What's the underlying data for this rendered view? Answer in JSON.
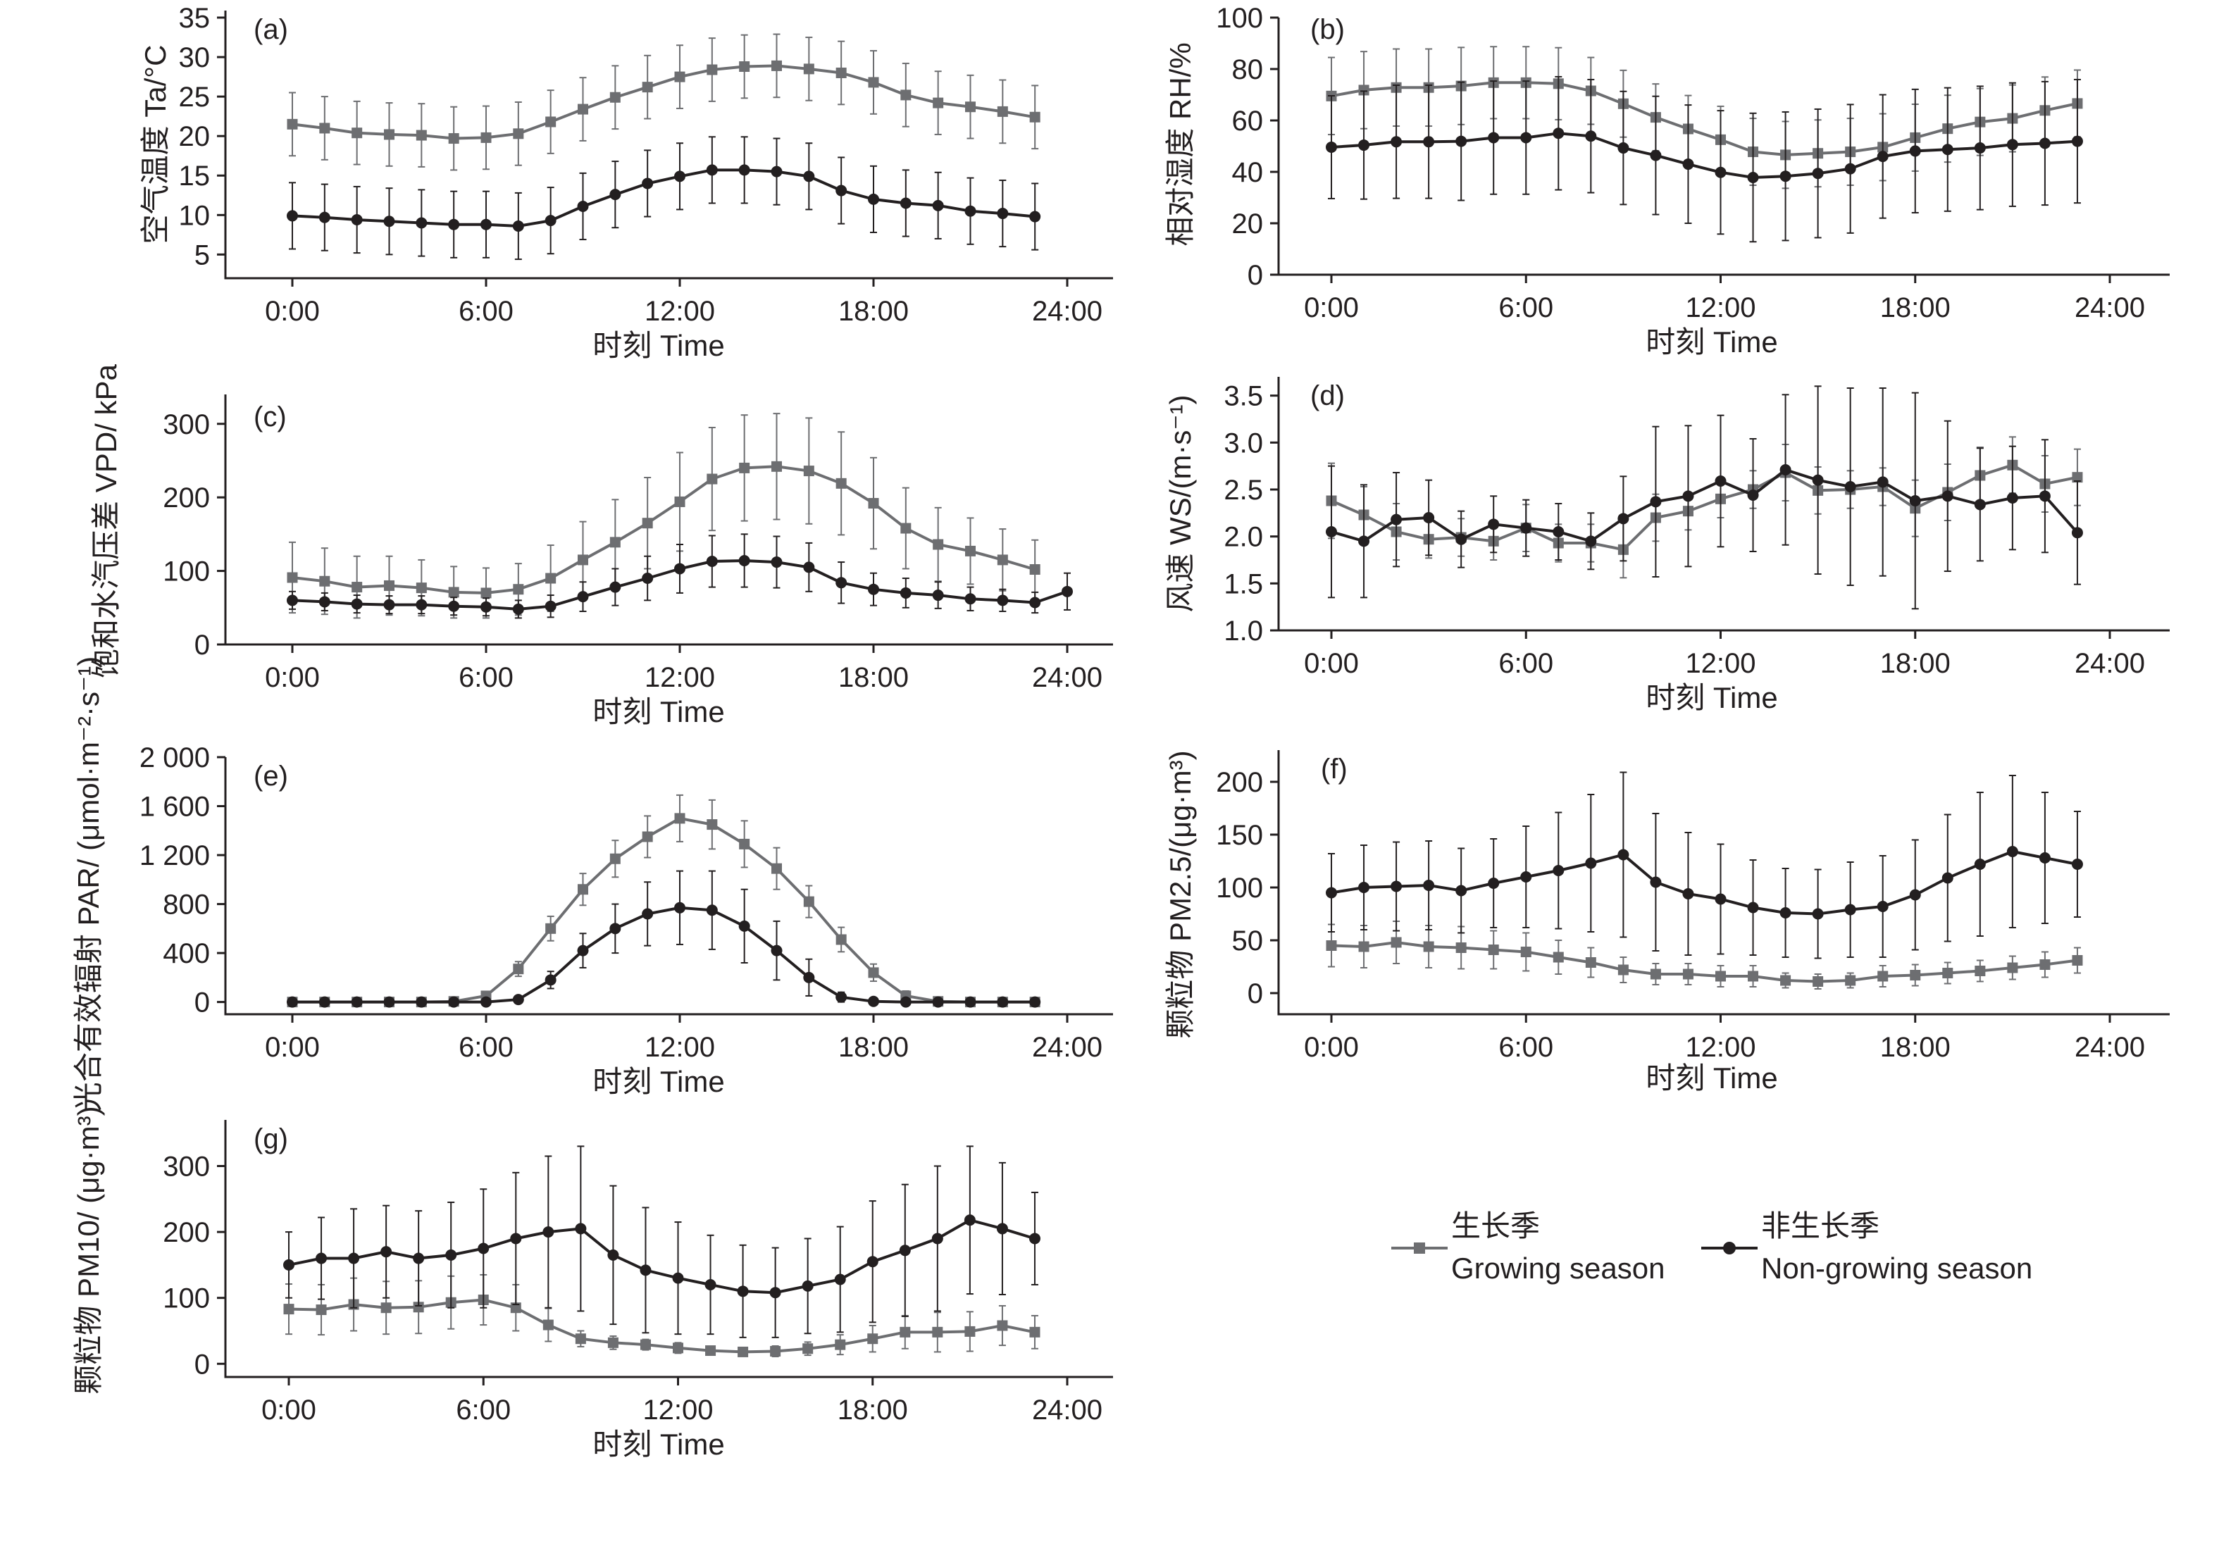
{
  "legend": {
    "growing_cn": "生长季",
    "growing_en": "Growing season",
    "nongrowing_cn": "非生长季",
    "nongrowing_en": "Non-growing season"
  },
  "colors": {
    "growing": "#6d6e71",
    "nongrowing": "#231f20"
  },
  "chart_data": [
    {
      "id": "a",
      "type": "line",
      "panel_label": "(a)",
      "xlabel": "时刻 Time",
      "ylabel": "空气温度 Ta/°C",
      "x_ticks": [
        "0:00",
        "6:00",
        "12:00",
        "18:00",
        "24:00"
      ],
      "y_ticks": [
        "5",
        "10",
        "15",
        "20",
        "25",
        "30",
        "35"
      ],
      "xlim": [
        0,
        24
      ],
      "ylim": [
        2,
        35
      ],
      "x": [
        0,
        1,
        2,
        3,
        4,
        5,
        6,
        7,
        8,
        9,
        10,
        11,
        12,
        13,
        14,
        15,
        16,
        17,
        18,
        19,
        20,
        21,
        22,
        23
      ],
      "series": [
        {
          "name": "Growing season",
          "marker": "square",
          "values": [
            21.5,
            21.0,
            20.4,
            20.2,
            20.1,
            19.7,
            19.8,
            20.3,
            21.8,
            23.4,
            24.9,
            26.2,
            27.5,
            28.4,
            28.8,
            28.9,
            28.5,
            28.0,
            26.8,
            25.2,
            24.2,
            23.7,
            23.1,
            22.4
          ],
          "error": [
            4,
            4,
            4,
            4,
            4,
            4,
            4,
            4,
            4,
            4,
            4,
            4,
            4,
            4,
            4,
            4,
            4,
            4,
            4,
            4,
            4,
            4,
            4,
            4
          ]
        },
        {
          "name": "Non-growing season",
          "marker": "circle",
          "values": [
            9.9,
            9.7,
            9.4,
            9.2,
            9.0,
            8.8,
            8.8,
            8.6,
            9.3,
            11.1,
            12.6,
            14.0,
            14.9,
            15.7,
            15.7,
            15.5,
            14.9,
            13.1,
            12.0,
            11.5,
            11.2,
            10.5,
            10.2,
            9.8
          ],
          "error": [
            4.2,
            4.2,
            4.2,
            4.2,
            4.2,
            4.2,
            4.2,
            4.2,
            4.2,
            4.2,
            4.2,
            4.2,
            4.2,
            4.2,
            4.2,
            4.2,
            4.2,
            4.2,
            4.2,
            4.2,
            4.2,
            4.2,
            4.2,
            4.2
          ]
        }
      ]
    },
    {
      "id": "b",
      "type": "line",
      "panel_label": "(b)",
      "xlabel": "时刻 Time",
      "ylabel": "相对湿度 RH/%",
      "x_ticks": [
        "0:00",
        "6:00",
        "12:00",
        "18:00",
        "24:00"
      ],
      "y_ticks": [
        "0",
        "20",
        "40",
        "60",
        "80",
        "100"
      ],
      "xlim": [
        0,
        24
      ],
      "ylim": [
        0,
        100
      ],
      "x": [
        0,
        1,
        2,
        3,
        4,
        5,
        6,
        7,
        8,
        9,
        10,
        11,
        12,
        13,
        14,
        15,
        16,
        17,
        18,
        19,
        20,
        21,
        22,
        23
      ],
      "series": [
        {
          "name": "Growing season",
          "marker": "square",
          "values": [
            69.5,
            71.8,
            72.8,
            72.8,
            73.4,
            74.7,
            74.7,
            74.3,
            71.5,
            66.5,
            61.2,
            56.7,
            52.5,
            47.8,
            46.6,
            47.2,
            47.8,
            49.6,
            53.3,
            56.8,
            59.4,
            60.8,
            63.9,
            66.6
          ],
          "error": [
            15,
            15,
            15,
            15,
            15,
            14,
            14,
            14,
            13,
            13,
            13,
            13,
            13,
            13,
            13,
            13,
            13,
            13,
            13,
            13,
            13,
            13,
            13,
            13
          ]
        },
        {
          "name": "Non-growing season",
          "marker": "circle",
          "values": [
            49.6,
            50.4,
            51.7,
            51.7,
            51.9,
            53.3,
            53.3,
            55.0,
            53.9,
            49.3,
            46.4,
            43.0,
            39.8,
            37.8,
            38.3,
            39.4,
            41.2,
            46.0,
            48.1,
            48.7,
            49.3,
            50.6,
            51.1,
            51.9
          ],
          "error": [
            20,
            21,
            22,
            22,
            23,
            22,
            22,
            22,
            22,
            22,
            23,
            23,
            24,
            25,
            25,
            25,
            25,
            24,
            24,
            24,
            24,
            24,
            24,
            24
          ]
        }
      ]
    },
    {
      "id": "c",
      "type": "line",
      "panel_label": "(c)",
      "xlabel": "时刻 Time",
      "ylabel": "饱和水汽压差 VPD/ kPa",
      "x_ticks": [
        "0:00",
        "6:00",
        "12:00",
        "18:00",
        "24:00"
      ],
      "y_ticks": [
        "0",
        "100",
        "200",
        "300"
      ],
      "xlim": [
        0,
        24
      ],
      "ylim": [
        0,
        340
      ],
      "x": [
        0,
        1,
        2,
        3,
        4,
        5,
        6,
        7,
        8,
        9,
        10,
        11,
        12,
        13,
        14,
        15,
        16,
        17,
        18,
        19,
        20,
        21,
        22,
        23
      ],
      "series": [
        {
          "name": "Growing season",
          "marker": "square",
          "values": [
            91,
            86,
            78,
            80,
            77,
            71,
            70,
            75,
            90,
            115,
            139,
            165,
            194,
            225,
            240,
            242,
            236,
            219,
            192,
            158,
            136,
            127,
            115,
            102
          ],
          "error": [
            48,
            45,
            42,
            40,
            38,
            35,
            34,
            35,
            45,
            52,
            58,
            62,
            67,
            70,
            72,
            72,
            72,
            70,
            62,
            55,
            50,
            45,
            42,
            40
          ]
        },
        {
          "name": "Non-growing season",
          "marker": "circle",
          "values": [
            60,
            58,
            55,
            54,
            54,
            52,
            51,
            48,
            52,
            65,
            78,
            90,
            103,
            113,
            114,
            112,
            105,
            84,
            75,
            70,
            67,
            62,
            60,
            57
          ],
          "error": [
            12,
            12,
            12,
            12,
            12,
            12,
            12,
            12,
            15,
            20,
            25,
            30,
            33,
            35,
            36,
            35,
            33,
            28,
            22,
            20,
            18,
            16,
            15,
            14
          ],
          "extra_point": {
            "x": 24,
            "value": 72,
            "error": 25
          }
        }
      ]
    },
    {
      "id": "d",
      "type": "line",
      "panel_label": "(d)",
      "xlabel": "时刻 Time",
      "ylabel": "风速 WS/(m·s⁻¹)",
      "x_ticks": [
        "0:00",
        "6:00",
        "12:00",
        "18:00",
        "24:00"
      ],
      "y_ticks": [
        "1.0",
        "1.5",
        "2.0",
        "2.5",
        "3.0",
        "3.5"
      ],
      "xlim": [
        0,
        24
      ],
      "ylim": [
        1.0,
        3.7
      ],
      "x": [
        0,
        1,
        2,
        3,
        4,
        5,
        6,
        7,
        8,
        9,
        10,
        11,
        12,
        13,
        14,
        15,
        16,
        17,
        18,
        19,
        20,
        21,
        22,
        23
      ],
      "series": [
        {
          "name": "Growing season",
          "marker": "square",
          "values": [
            2.38,
            2.23,
            2.05,
            1.97,
            1.99,
            1.95,
            2.09,
            1.93,
            1.93,
            1.86,
            2.2,
            2.27,
            2.4,
            2.5,
            2.68,
            2.49,
            2.5,
            2.53,
            2.3,
            2.47,
            2.65,
            2.76,
            2.56,
            2.63
          ],
          "error": [
            0.4,
            0.3,
            0.3,
            0.2,
            0.2,
            0.2,
            0.25,
            0.2,
            0.2,
            0.3,
            0.25,
            0.2,
            0.2,
            0.2,
            0.3,
            0.25,
            0.2,
            0.2,
            0.3,
            0.3,
            0.3,
            0.3,
            0.3,
            0.3
          ]
        },
        {
          "name": "Non-growing season",
          "marker": "circle",
          "values": [
            2.05,
            1.95,
            2.18,
            2.2,
            1.97,
            2.13,
            2.09,
            2.05,
            1.95,
            2.19,
            2.37,
            2.43,
            2.59,
            2.44,
            2.71,
            2.6,
            2.53,
            2.58,
            2.38,
            2.43,
            2.34,
            2.41,
            2.43,
            2.04
          ],
          "error": [
            0.7,
            0.6,
            0.5,
            0.4,
            0.3,
            0.3,
            0.3,
            0.3,
            0.3,
            0.45,
            0.8,
            0.75,
            0.7,
            0.6,
            0.8,
            1.0,
            1.05,
            1.0,
            1.15,
            0.8,
            0.6,
            0.55,
            0.6,
            0.55
          ]
        }
      ]
    },
    {
      "id": "e",
      "type": "line",
      "panel_label": "(e)",
      "xlabel": "时刻 Time",
      "ylabel": "光合有效辐射 PAR/ (μmol·m⁻²·s⁻¹)",
      "x_ticks": [
        "0:00",
        "6:00",
        "12:00",
        "18:00",
        "24:00"
      ],
      "y_ticks": [
        "0",
        "400",
        "800",
        "1 200",
        "1 600",
        "2 000"
      ],
      "xlim": [
        0,
        24
      ],
      "ylim": [
        -100,
        2000
      ],
      "x": [
        0,
        1,
        2,
        3,
        4,
        5,
        6,
        7,
        8,
        9,
        10,
        11,
        12,
        13,
        14,
        15,
        16,
        17,
        18,
        19,
        20,
        21,
        22,
        23
      ],
      "series": [
        {
          "name": "Growing season",
          "marker": "square",
          "values": [
            0,
            0,
            0,
            0,
            0,
            5,
            50,
            270,
            600,
            920,
            1170,
            1350,
            1500,
            1450,
            1290,
            1090,
            820,
            510,
            240,
            50,
            5,
            0,
            0,
            0
          ],
          "error": [
            0,
            0,
            0,
            0,
            0,
            5,
            20,
            60,
            100,
            130,
            150,
            170,
            190,
            200,
            190,
            170,
            130,
            100,
            70,
            40,
            5,
            0,
            0,
            0
          ]
        },
        {
          "name": "Non-growing season",
          "marker": "circle",
          "values": [
            0,
            0,
            0,
            0,
            0,
            0,
            0,
            20,
            180,
            420,
            600,
            720,
            770,
            750,
            620,
            420,
            200,
            40,
            5,
            0,
            0,
            0,
            0,
            0
          ],
          "error": [
            0,
            0,
            0,
            0,
            0,
            0,
            0,
            15,
            70,
            140,
            200,
            260,
            300,
            320,
            300,
            240,
            150,
            40,
            5,
            0,
            0,
            0,
            0,
            0
          ]
        }
      ]
    },
    {
      "id": "f",
      "type": "line",
      "panel_label": "(f)",
      "xlabel": "时刻 Time",
      "ylabel": "颗粒物 PM2.5/(μg·m³)",
      "x_ticks": [
        "0:00",
        "6:00",
        "12:00",
        "18:00",
        "24:00"
      ],
      "y_ticks": [
        "0",
        "50",
        "100",
        "150",
        "200"
      ],
      "xlim": [
        0,
        24
      ],
      "ylim": [
        -20,
        230
      ],
      "x": [
        0,
        1,
        2,
        3,
        4,
        5,
        6,
        7,
        8,
        9,
        10,
        11,
        12,
        13,
        14,
        15,
        16,
        17,
        18,
        19,
        20,
        21,
        22,
        23
      ],
      "series": [
        {
          "name": "Growing season",
          "marker": "square",
          "values": [
            45,
            44,
            48,
            44,
            43,
            41,
            39,
            34,
            29,
            22,
            18,
            18,
            16,
            16,
            12,
            11,
            12,
            16,
            17,
            19,
            21,
            24,
            27,
            31
          ],
          "error": [
            20,
            20,
            20,
            20,
            20,
            18,
            18,
            16,
            14,
            12,
            10,
            10,
            10,
            10,
            7,
            7,
            7,
            10,
            10,
            10,
            10,
            11,
            12,
            12
          ]
        },
        {
          "name": "Non-growing season",
          "marker": "circle",
          "values": [
            95,
            100,
            101,
            102,
            97,
            104,
            110,
            116,
            123,
            131,
            105,
            94,
            89,
            81,
            76,
            75,
            79,
            82,
            93,
            109,
            122,
            134,
            128,
            122
          ],
          "error": [
            37,
            40,
            42,
            42,
            40,
            42,
            48,
            55,
            65,
            78,
            65,
            58,
            52,
            45,
            42,
            42,
            45,
            48,
            52,
            60,
            68,
            72,
            62,
            50
          ]
        }
      ]
    },
    {
      "id": "g",
      "type": "line",
      "panel_label": "(g)",
      "xlabel": "时刻 Time",
      "ylabel": "颗粒物 PM10/ (μg·m³)",
      "x_ticks": [
        "0:00",
        "6:00",
        "12:00",
        "18:00",
        "24:00"
      ],
      "y_ticks": [
        "0",
        "100",
        "200",
        "300"
      ],
      "xlim": [
        0,
        24
      ],
      "ylim": [
        -20,
        370
      ],
      "x": [
        0,
        1,
        2,
        3,
        4,
        5,
        6,
        7,
        8,
        9,
        10,
        11,
        12,
        13,
        14,
        15,
        16,
        17,
        18,
        19,
        20,
        21,
        22,
        23
      ],
      "series": [
        {
          "name": "Growing season",
          "marker": "square",
          "values": [
            83,
            82,
            90,
            85,
            86,
            93,
            97,
            85,
            59,
            38,
            32,
            29,
            24,
            20,
            18,
            19,
            23,
            29,
            38,
            48,
            48,
            49,
            58,
            48
          ],
          "error": [
            38,
            38,
            40,
            40,
            40,
            40,
            38,
            35,
            25,
            12,
            10,
            8,
            8,
            6,
            6,
            8,
            10,
            15,
            20,
            25,
            30,
            30,
            30,
            25
          ]
        },
        {
          "name": "Non-growing season",
          "marker": "circle",
          "values": [
            150,
            160,
            160,
            170,
            160,
            165,
            175,
            190,
            200,
            205,
            165,
            142,
            130,
            120,
            110,
            108,
            118,
            128,
            155,
            172,
            190,
            218,
            205,
            190
          ],
          "error": [
            50,
            62,
            75,
            70,
            72,
            80,
            90,
            100,
            115,
            125,
            105,
            95,
            85,
            75,
            70,
            68,
            72,
            80,
            92,
            100,
            110,
            112,
            100,
            70
          ]
        }
      ]
    }
  ]
}
